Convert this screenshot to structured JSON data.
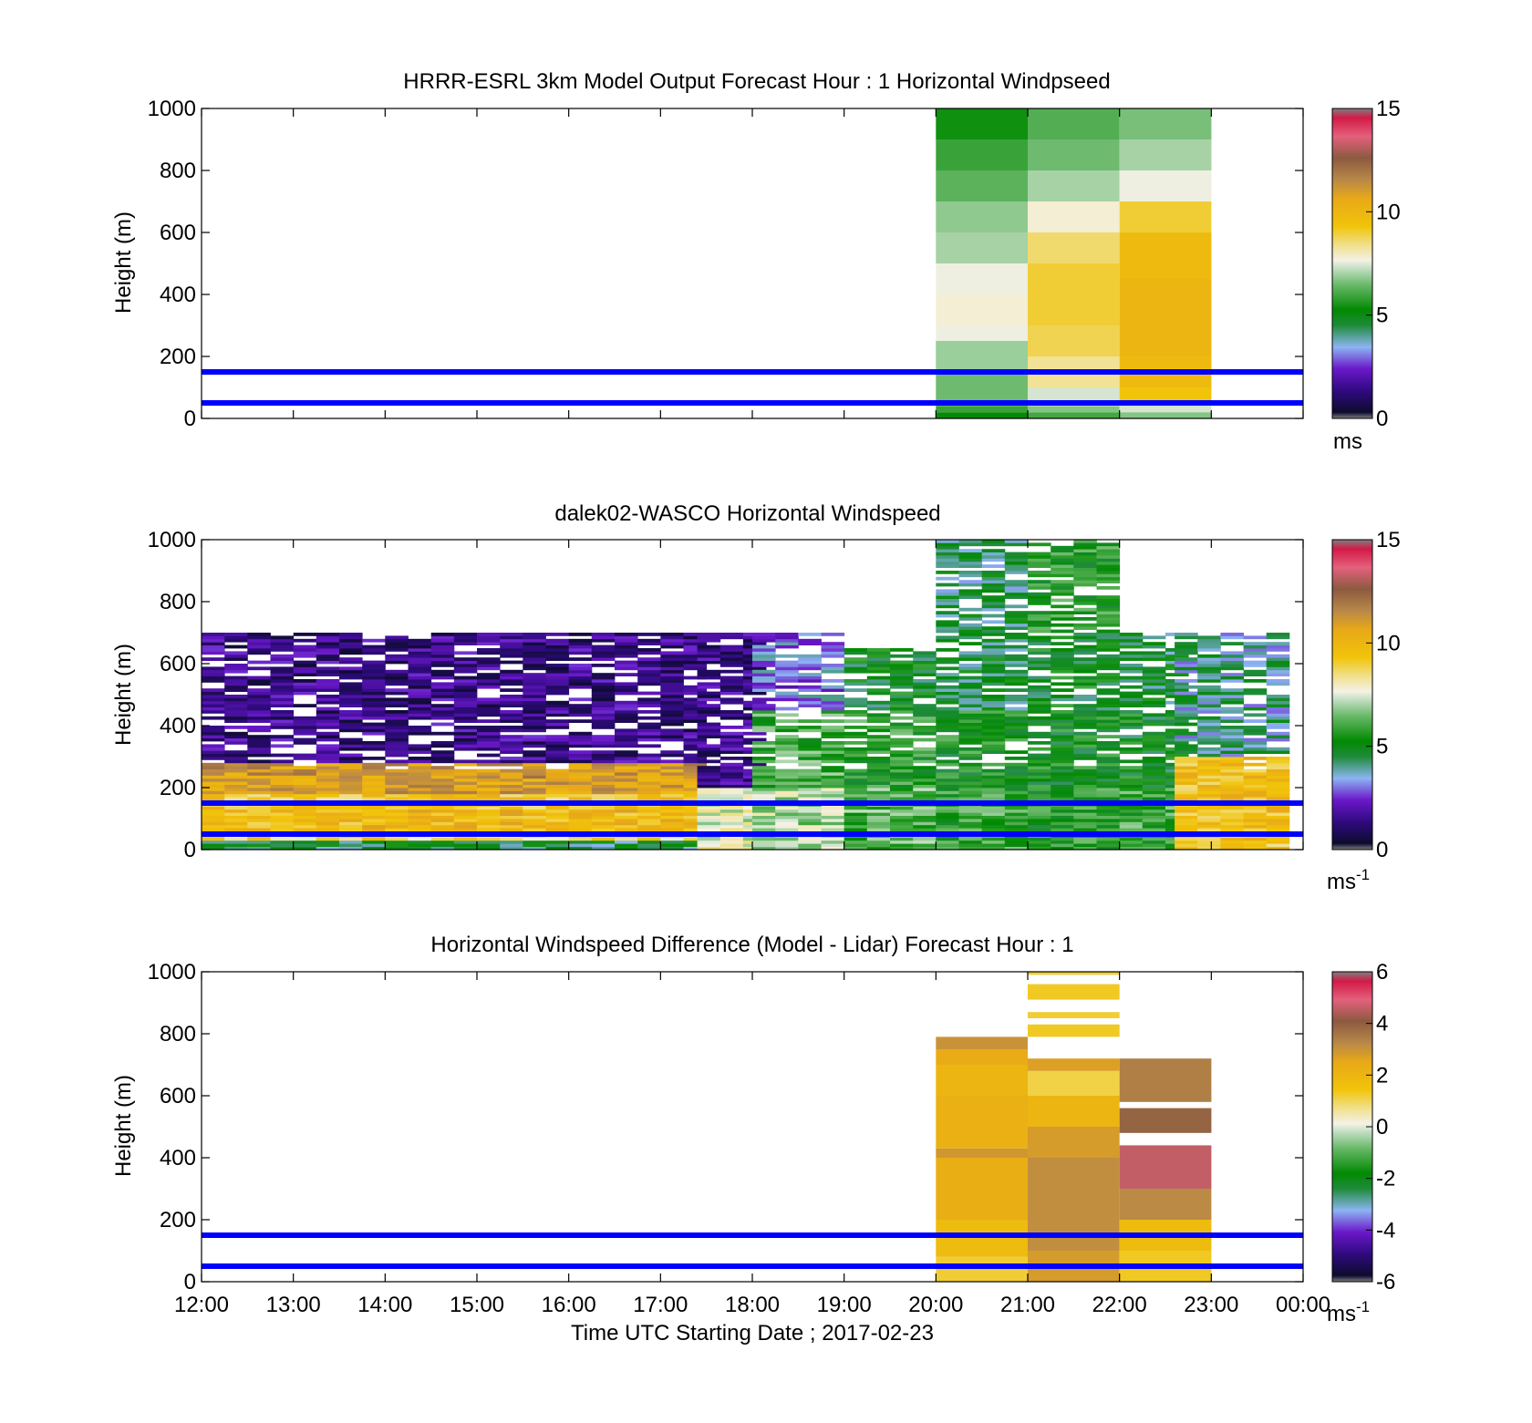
{
  "figure": {
    "xlabel": "Time UTC  Starting Date ; 2017-02-23",
    "x_tick_labels": [
      "12:00",
      "13:00",
      "14:00",
      "15:00",
      "16:00",
      "17:00",
      "18:00",
      "19:00",
      "20:00",
      "21:00",
      "22:00",
      "23:00",
      "00:00"
    ]
  },
  "chart_data": [
    {
      "type": "heatmap",
      "title": "HRRR-ESRL 3km Model Output   Forecast Hour : 1 Horizontal Windpseed",
      "ylabel": "Height (m)",
      "xlim_hours_utc": [
        12,
        24
      ],
      "ylim": [
        0,
        1000
      ],
      "y_ticks": [
        0,
        200,
        400,
        600,
        800,
        1000
      ],
      "reference_lines_m": [
        150,
        50
      ],
      "reference_line_color": "#0000ff",
      "colorbar": {
        "range": [
          0,
          15
        ],
        "ticks": [
          0,
          5,
          10,
          15
        ],
        "unit": "ms",
        "unit_sup": ""
      },
      "columns": [
        {
          "hour": 20,
          "cells": [
            [
              0,
              20,
              5.2
            ],
            [
              20,
              40,
              5.9
            ],
            [
              40,
              150,
              6.5
            ],
            [
              150,
              250,
              6.9
            ],
            [
              250,
              300,
              7.6
            ],
            [
              300,
              400,
              7.8
            ],
            [
              400,
              450,
              7.6
            ],
            [
              450,
              500,
              7.6
            ],
            [
              500,
              600,
              7.0
            ],
            [
              600,
              700,
              6.8
            ],
            [
              700,
              800,
              6.3
            ],
            [
              800,
              900,
              5.9
            ],
            [
              900,
              1000,
              5.4
            ]
          ]
        },
        {
          "hour": 21,
          "cells": [
            [
              0,
              20,
              6.0
            ],
            [
              20,
              40,
              6.7
            ],
            [
              40,
              100,
              7.4
            ],
            [
              100,
              200,
              8.3
            ],
            [
              200,
              300,
              8.8
            ],
            [
              300,
              500,
              9.0
            ],
            [
              500,
              600,
              8.6
            ],
            [
              600,
              700,
              7.8
            ],
            [
              700,
              800,
              7.0
            ],
            [
              800,
              900,
              6.5
            ],
            [
              900,
              1000,
              6.2
            ]
          ]
        },
        {
          "hour": 22,
          "cells": [
            [
              0,
              20,
              6.7
            ],
            [
              20,
              50,
              7.4
            ],
            [
              50,
              100,
              9.3
            ],
            [
              100,
              200,
              9.8
            ],
            [
              200,
              450,
              10.0
            ],
            [
              450,
              600,
              9.8
            ],
            [
              600,
              700,
              9.0
            ],
            [
              700,
              800,
              7.6
            ],
            [
              800,
              900,
              7.0
            ],
            [
              900,
              1000,
              6.6
            ]
          ]
        }
      ]
    },
    {
      "type": "heatmap",
      "title": "dalek02-WASCO  Horizontal Windspeed",
      "ylabel": "Height (m)",
      "xlim_hours_utc": [
        12,
        24
      ],
      "ylim": [
        0,
        1000
      ],
      "y_ticks": [
        0,
        200,
        400,
        600,
        800,
        1000
      ],
      "reference_lines_m": [
        150,
        50
      ],
      "reference_line_color": "#0000ff",
      "colorbar": {
        "range": [
          0,
          15
        ],
        "ticks": [
          0,
          5,
          10,
          15
        ],
        "unit": "ms",
        "unit_sup": "-1"
      },
      "time_periods": [
        {
          "from_hour": 12.0,
          "to_hour": 17.4,
          "levels": [
            [
              0,
              30,
              4.5
            ],
            [
              30,
              60,
              8.6
            ],
            [
              60,
              130,
              9.8
            ],
            [
              130,
              180,
              9.4
            ],
            [
              180,
              230,
              10.8
            ],
            [
              230,
              280,
              11.0
            ],
            [
              280,
              700,
              1.5
            ]
          ]
        },
        {
          "from_hour": 17.4,
          "to_hour": 18.0,
          "levels": [
            [
              0,
              200,
              7.5
            ],
            [
              200,
              700,
              1.5
            ]
          ]
        },
        {
          "from_hour": 18.0,
          "to_hour": 19.0,
          "levels": [
            [
              0,
              200,
              7.0
            ],
            [
              200,
              450,
              6.0
            ],
            [
              450,
              700,
              3.0
            ]
          ]
        },
        {
          "from_hour": 19.0,
          "to_hour": 20.0,
          "levels": [
            [
              0,
              200,
              6.2
            ],
            [
              200,
              450,
              5.6
            ],
            [
              450,
              650,
              5.0
            ]
          ]
        },
        {
          "from_hour": 20.0,
          "to_hour": 21.0,
          "levels": [
            [
              0,
              200,
              5.8
            ],
            [
              200,
              450,
              5.4
            ],
            [
              450,
              800,
              4.6
            ],
            [
              800,
              1000,
              4.4
            ]
          ]
        },
        {
          "from_hour": 21.0,
          "to_hour": 22.0,
          "levels": [
            [
              0,
              200,
              5.5
            ],
            [
              200,
              450,
              5.2
            ],
            [
              450,
              700,
              5.0
            ],
            [
              700,
              1000,
              5.6
            ]
          ]
        },
        {
          "from_hour": 22.0,
          "to_hour": 22.6,
          "levels": [
            [
              0,
              200,
              5.8
            ],
            [
              200,
              450,
              5.0
            ],
            [
              450,
              700,
              4.6
            ]
          ]
        },
        {
          "from_hour": 22.6,
          "to_hour": 23.8,
          "levels": [
            [
              0,
              30,
              9.0
            ],
            [
              30,
              300,
              9.6
            ],
            [
              300,
              700,
              4.0
            ]
          ]
        }
      ]
    },
    {
      "type": "heatmap",
      "title": "Horizontal Windspeed Difference (Model - Lidar) Forecast Hour : 1",
      "ylabel": "Height (m)",
      "xlim_hours_utc": [
        12,
        24
      ],
      "ylim": [
        0,
        1000
      ],
      "y_ticks": [
        0,
        200,
        400,
        600,
        800,
        1000
      ],
      "reference_lines_m": [
        150,
        50
      ],
      "reference_line_color": "#0000ff",
      "colorbar": {
        "range": [
          -6,
          6
        ],
        "ticks": [
          -6,
          -4,
          -2,
          0,
          2,
          4,
          6
        ],
        "unit": "ms",
        "unit_sup": "-1"
      },
      "columns": [
        {
          "hour": 20,
          "cells": [
            [
              0,
              80,
              1.2
            ],
            [
              80,
              200,
              1.8
            ],
            [
              200,
              400,
              2.3
            ],
            [
              400,
              430,
              2.9
            ],
            [
              430,
              600,
              2.2
            ],
            [
              600,
              700,
              2.0
            ],
            [
              700,
              750,
              2.4
            ],
            [
              750,
              790,
              3.0
            ]
          ]
        },
        {
          "hour": 21,
          "cells": [
            [
              0,
              100,
              2.8
            ],
            [
              100,
              400,
              3.1
            ],
            [
              400,
              500,
              2.8
            ],
            [
              500,
              600,
              2.0
            ],
            [
              600,
              680,
              1.1
            ],
            [
              680,
              720,
              2.7
            ],
            [
              790,
              830,
              1.3
            ],
            [
              850,
              870,
              1.2
            ],
            [
              910,
              960,
              1.3
            ],
            [
              990,
              1000,
              1.2
            ]
          ]
        },
        {
          "hour": 22,
          "cells": [
            [
              0,
              100,
              1.3
            ],
            [
              100,
              200,
              1.8
            ],
            [
              200,
              300,
              3.2
            ],
            [
              300,
              440,
              4.6
            ],
            [
              480,
              560,
              3.9
            ],
            [
              580,
              720,
              3.4
            ]
          ]
        }
      ]
    }
  ]
}
